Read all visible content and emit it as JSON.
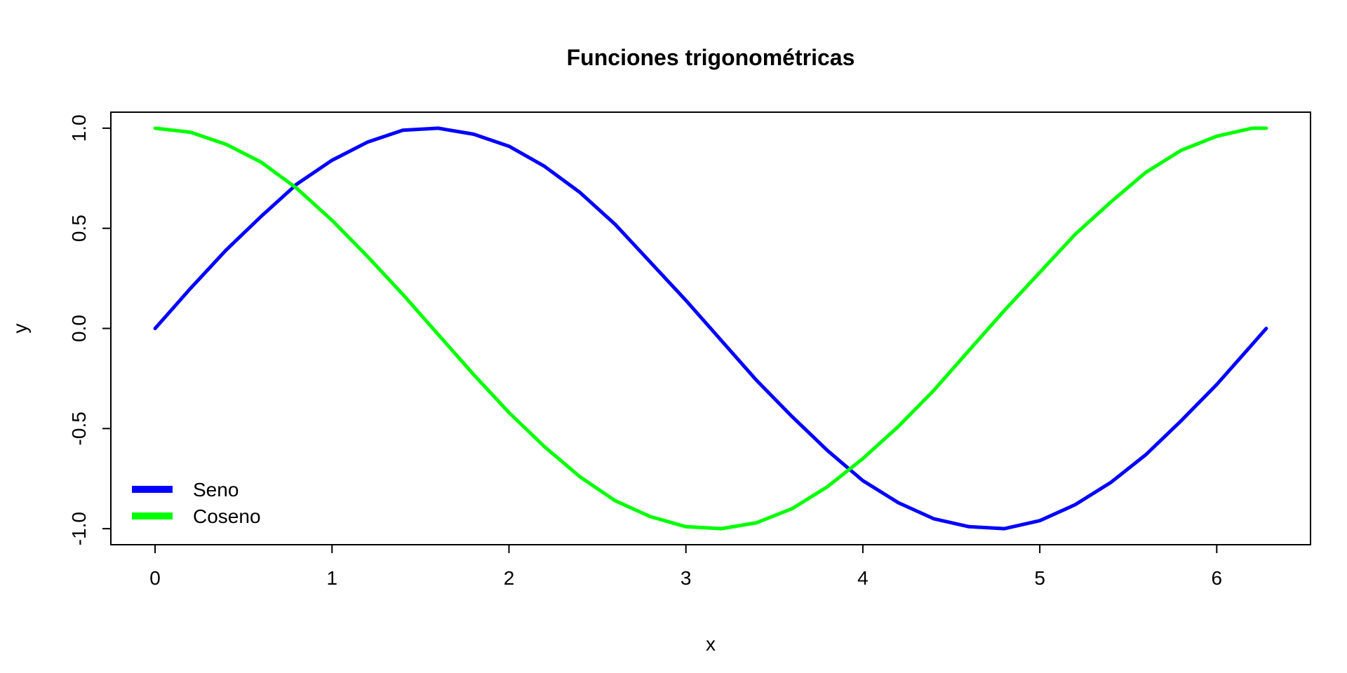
{
  "chart_data": {
    "type": "line",
    "title": "Funciones trigonométricas",
    "xlabel": "x",
    "ylabel": "y",
    "xlim": [
      -0.25,
      6.53
    ],
    "ylim": [
      -1.08,
      1.08
    ],
    "xticks": [
      0,
      1,
      2,
      3,
      4,
      5,
      6
    ],
    "yticks": [
      -1.0,
      -0.5,
      0.0,
      0.5,
      1.0
    ],
    "xtick_labels": [
      "0",
      "1",
      "2",
      "3",
      "4",
      "5",
      "6"
    ],
    "ytick_labels": [
      "-1.0",
      "-0.5",
      "0.0",
      "0.5",
      "1.0"
    ],
    "grid": false,
    "legend": {
      "position": "bottom-left",
      "framed": false
    },
    "x": [
      0,
      0.2,
      0.4,
      0.6,
      0.8,
      1.0,
      1.2,
      1.4,
      1.6,
      1.8,
      2.0,
      2.2,
      2.4,
      2.6,
      2.8,
      3.0,
      3.2,
      3.4,
      3.6,
      3.8,
      4.0,
      4.2,
      4.4,
      4.6,
      4.8,
      5.0,
      5.2,
      5.4,
      5.6,
      5.8,
      6.0,
      6.2,
      6.28
    ],
    "series": [
      {
        "name": "Seno",
        "color": "#0000ff",
        "values": [
          0.0,
          0.2,
          0.39,
          0.56,
          0.72,
          0.84,
          0.93,
          0.99,
          1.0,
          0.97,
          0.91,
          0.81,
          0.68,
          0.52,
          0.33,
          0.14,
          -0.06,
          -0.26,
          -0.44,
          -0.61,
          -0.76,
          -0.87,
          -0.95,
          -0.99,
          -1.0,
          -0.96,
          -0.88,
          -0.77,
          -0.63,
          -0.46,
          -0.28,
          -0.08,
          0.0
        ]
      },
      {
        "name": "Coseno",
        "color": "#00ff00",
        "values": [
          1.0,
          0.98,
          0.92,
          0.83,
          0.7,
          0.54,
          0.36,
          0.17,
          -0.03,
          -0.23,
          -0.42,
          -0.59,
          -0.74,
          -0.86,
          -0.94,
          -0.99,
          -1.0,
          -0.97,
          -0.9,
          -0.79,
          -0.65,
          -0.49,
          -0.31,
          -0.11,
          0.09,
          0.28,
          0.47,
          0.63,
          0.78,
          0.89,
          0.96,
          1.0,
          1.0
        ]
      }
    ]
  }
}
